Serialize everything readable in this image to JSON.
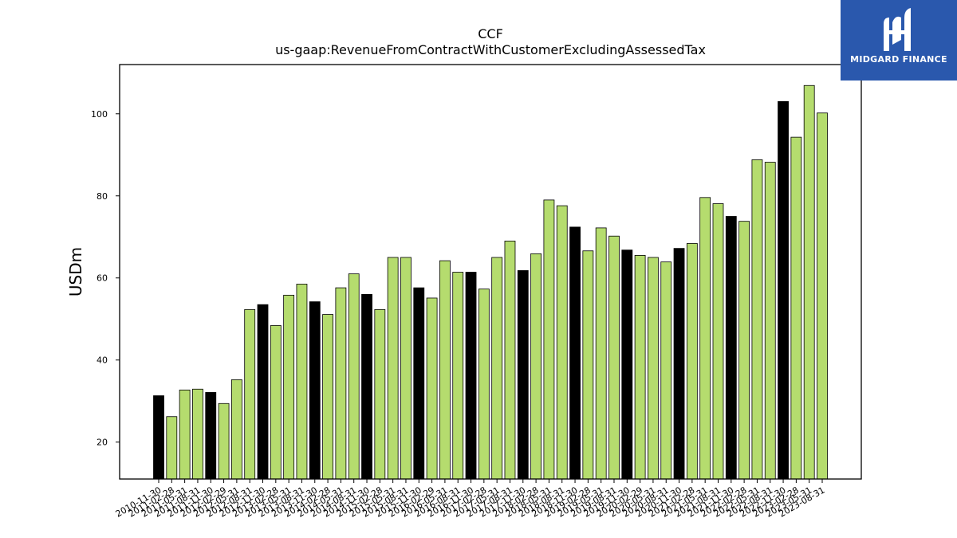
{
  "brand": {
    "name": "MIDGARD FINANCE",
    "bg_color": "#2a58ad",
    "icon": "midgard-m-logo-icon"
  },
  "chart_data": {
    "type": "bar",
    "title": "CCF",
    "subtitle": "us-gaap:RevenueFromContractWithCustomerExcludingAssessedTax",
    "xlabel": "",
    "ylabel": "USDm",
    "ylim": [
      11,
      112
    ],
    "yticks": [
      20,
      40,
      60,
      80,
      100
    ],
    "grid": false,
    "colors": {
      "annual": "#000000",
      "quarterly": "#b5dc6e",
      "edge": "#000000"
    },
    "categories": [
      "2010-11-30",
      "2011-02-28",
      "2011-05-31",
      "2011-08-31",
      "2011-11-30",
      "2012-02-29",
      "2012-05-31",
      "2012-08-31",
      "2012-11-30",
      "2013-02-28",
      "2013-05-31",
      "2013-08-31",
      "2013-11-30",
      "2014-02-28",
      "2014-05-31",
      "2014-08-31",
      "2014-11-30",
      "2015-02-28",
      "2015-05-31",
      "2015-08-31",
      "2015-11-30",
      "2016-02-29",
      "2016-05-31",
      "2016-08-31",
      "2016-11-30",
      "2017-02-28",
      "2017-05-31",
      "2017-08-31",
      "2017-11-30",
      "2018-02-28",
      "2018-05-31",
      "2018-08-31",
      "2018-11-30",
      "2019-02-28",
      "2019-05-31",
      "2019-08-31",
      "2019-11-30",
      "2020-02-29",
      "2020-05-31",
      "2020-08-31",
      "2020-11-30",
      "2021-02-28",
      "2021-05-31",
      "2021-08-31",
      "2021-11-30",
      "2022-02-28",
      "2022-05-31",
      "2022-08-31",
      "2022-11-30",
      "2023-02-28",
      "2023-05-31",
      "2023-08-31"
    ],
    "values": [
      31.3,
      26.2,
      32.7,
      32.9,
      32.1,
      29.4,
      35.2,
      52.3,
      53.5,
      48.4,
      55.8,
      58.5,
      54.2,
      51.1,
      57.6,
      61.0,
      56.0,
      52.3,
      65.0,
      65.0,
      57.6,
      55.1,
      64.2,
      61.4,
      61.4,
      57.3,
      65.0,
      69.0,
      61.8,
      65.9,
      79.0,
      77.6,
      72.4,
      66.6,
      72.2,
      70.2,
      66.8,
      65.5,
      65.0,
      63.9,
      67.2,
      68.4,
      79.6,
      78.1,
      75.0,
      73.8,
      88.8,
      88.2,
      103.0,
      94.3,
      106.9,
      100.2
    ],
    "highlighted_annual": [
      true,
      false,
      false,
      false,
      true,
      false,
      false,
      false,
      true,
      false,
      false,
      false,
      true,
      false,
      false,
      false,
      true,
      false,
      false,
      false,
      true,
      false,
      false,
      false,
      true,
      false,
      false,
      false,
      true,
      false,
      false,
      false,
      true,
      false,
      false,
      false,
      true,
      false,
      false,
      false,
      true,
      false,
      false,
      false,
      true,
      false,
      false,
      false,
      true,
      false,
      false,
      false
    ]
  }
}
